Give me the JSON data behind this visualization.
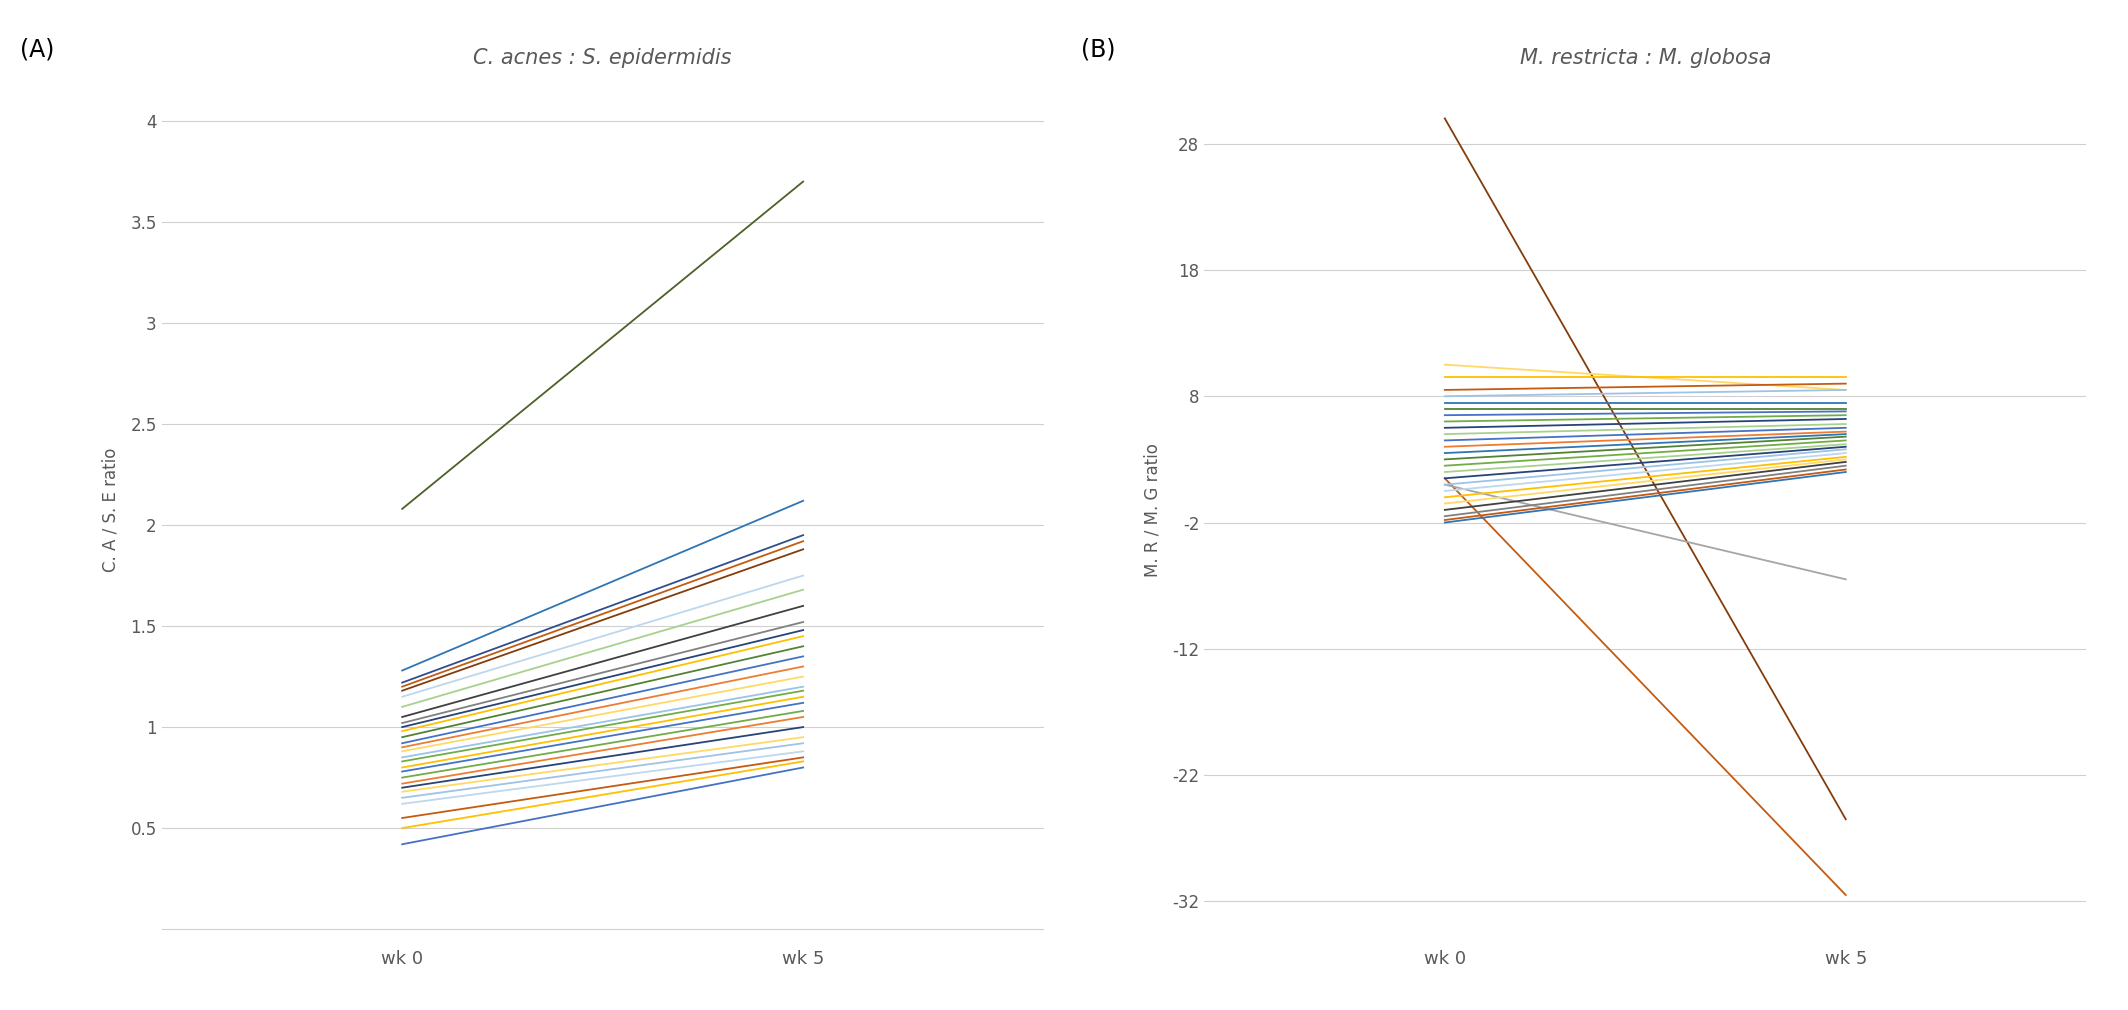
{
  "title_A": "C. acnes : S. epidermidis",
  "title_B": "M. restricta : M. globosa",
  "label_A": "(A)",
  "label_B": "(B)",
  "ylabel_A": "C. A / S. E ratio",
  "ylabel_B": "M. R / M. G ratio",
  "xtick_labels": [
    "wk 0",
    "wk 5"
  ],
  "ylim_A": [
    -0.05,
    4.2
  ],
  "ylim_B": [
    -35,
    33
  ],
  "yticks_A": [
    0,
    0.5,
    1,
    1.5,
    2,
    2.5,
    3,
    3.5,
    4
  ],
  "yticks_B": [
    -32,
    -22,
    -12,
    -2,
    8,
    18,
    28
  ],
  "background_color": "#ffffff",
  "lines_A": [
    {
      "wk0": 2.08,
      "wk5": 3.7,
      "color": "#4a6128"
    },
    {
      "wk0": 1.28,
      "wk5": 2.12,
      "color": "#2e75b6"
    },
    {
      "wk0": 1.22,
      "wk5": 1.95,
      "color": "#2e4e8e"
    },
    {
      "wk0": 1.2,
      "wk5": 1.92,
      "color": "#c55a11"
    },
    {
      "wk0": 1.18,
      "wk5": 1.88,
      "color": "#843c0b"
    },
    {
      "wk0": 1.15,
      "wk5": 1.75,
      "color": "#bdd7ee"
    },
    {
      "wk0": 1.1,
      "wk5": 1.68,
      "color": "#a9d18e"
    },
    {
      "wk0": 1.05,
      "wk5": 1.6,
      "color": "#404040"
    },
    {
      "wk0": 1.02,
      "wk5": 1.52,
      "color": "#808080"
    },
    {
      "wk0": 1.0,
      "wk5": 1.48,
      "color": "#264478"
    },
    {
      "wk0": 0.98,
      "wk5": 1.45,
      "color": "#ffc000"
    },
    {
      "wk0": 0.95,
      "wk5": 1.4,
      "color": "#548235"
    },
    {
      "wk0": 0.92,
      "wk5": 1.35,
      "color": "#4472c4"
    },
    {
      "wk0": 0.9,
      "wk5": 1.3,
      "color": "#ed7d31"
    },
    {
      "wk0": 0.88,
      "wk5": 1.25,
      "color": "#ffd966"
    },
    {
      "wk0": 0.85,
      "wk5": 1.2,
      "color": "#9dc3e6"
    },
    {
      "wk0": 0.83,
      "wk5": 1.18,
      "color": "#70ad47"
    },
    {
      "wk0": 0.8,
      "wk5": 1.15,
      "color": "#ffc000"
    },
    {
      "wk0": 0.78,
      "wk5": 1.12,
      "color": "#4472c4"
    },
    {
      "wk0": 0.75,
      "wk5": 1.08,
      "color": "#70ad47"
    },
    {
      "wk0": 0.72,
      "wk5": 1.05,
      "color": "#ed7d31"
    },
    {
      "wk0": 0.7,
      "wk5": 1.0,
      "color": "#264478"
    },
    {
      "wk0": 0.68,
      "wk5": 0.95,
      "color": "#ffd966"
    },
    {
      "wk0": 0.65,
      "wk5": 0.92,
      "color": "#9dc3e6"
    },
    {
      "wk0": 0.62,
      "wk5": 0.88,
      "color": "#bdd7ee"
    },
    {
      "wk0": 0.55,
      "wk5": 0.85,
      "color": "#c55a11"
    },
    {
      "wk0": 0.5,
      "wk5": 0.83,
      "color": "#ffc000"
    },
    {
      "wk0": 0.42,
      "wk5": 0.8,
      "color": "#4472c4"
    }
  ],
  "lines_B": [
    {
      "wk0": 30.0,
      "wk5": -25.5,
      "color": "#843c0c"
    },
    {
      "wk0": 1.5,
      "wk5": -31.5,
      "color": "#c55a11"
    },
    {
      "wk0": 1.0,
      "wk5": -6.5,
      "color": "#a5a5a5"
    },
    {
      "wk0": 10.5,
      "wk5": 8.5,
      "color": "#ffd966"
    },
    {
      "wk0": 9.5,
      "wk5": 9.5,
      "color": "#ffc000"
    },
    {
      "wk0": 8.5,
      "wk5": 9.0,
      "color": "#c55a11"
    },
    {
      "wk0": 8.0,
      "wk5": 8.5,
      "color": "#9dc3e6"
    },
    {
      "wk0": 7.5,
      "wk5": 7.5,
      "color": "#2e75b6"
    },
    {
      "wk0": 7.0,
      "wk5": 7.0,
      "color": "#548235"
    },
    {
      "wk0": 6.5,
      "wk5": 6.8,
      "color": "#4472c4"
    },
    {
      "wk0": 6.0,
      "wk5": 6.5,
      "color": "#70ad47"
    },
    {
      "wk0": 5.5,
      "wk5": 6.2,
      "color": "#264478"
    },
    {
      "wk0": 5.0,
      "wk5": 5.8,
      "color": "#a9d18e"
    },
    {
      "wk0": 4.5,
      "wk5": 5.5,
      "color": "#4472c4"
    },
    {
      "wk0": 4.0,
      "wk5": 5.2,
      "color": "#ed7d31"
    },
    {
      "wk0": 3.5,
      "wk5": 5.0,
      "color": "#2e75b6"
    },
    {
      "wk0": 3.0,
      "wk5": 4.8,
      "color": "#548235"
    },
    {
      "wk0": 2.5,
      "wk5": 4.5,
      "color": "#70ad47"
    },
    {
      "wk0": 2.0,
      "wk5": 4.2,
      "color": "#a9d18e"
    },
    {
      "wk0": 1.5,
      "wk5": 4.0,
      "color": "#264478"
    },
    {
      "wk0": 1.0,
      "wk5": 3.8,
      "color": "#9dc3e6"
    },
    {
      "wk0": 0.5,
      "wk5": 3.5,
      "color": "#bdd7ee"
    },
    {
      "wk0": 0.0,
      "wk5": 3.2,
      "color": "#ffc000"
    },
    {
      "wk0": -0.5,
      "wk5": 3.0,
      "color": "#ffd966"
    },
    {
      "wk0": -1.0,
      "wk5": 2.8,
      "color": "#404040"
    },
    {
      "wk0": -1.5,
      "wk5": 2.5,
      "color": "#808080"
    },
    {
      "wk0": -1.8,
      "wk5": 2.2,
      "color": "#c55a11"
    },
    {
      "wk0": -2.0,
      "wk5": 2.0,
      "color": "#2e75b6"
    }
  ]
}
